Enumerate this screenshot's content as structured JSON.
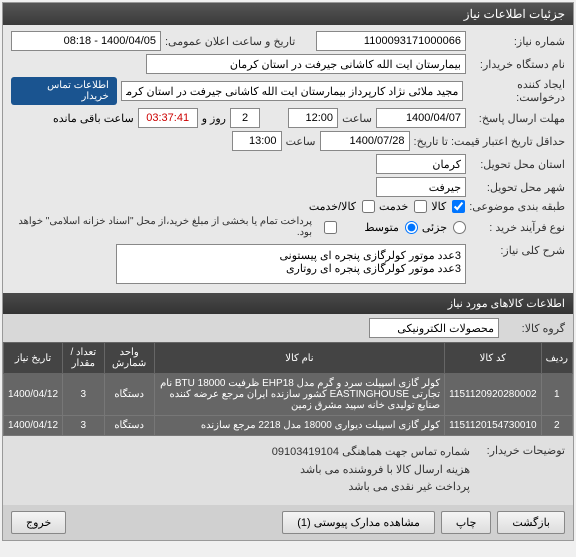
{
  "header": {
    "title": "جزئیات اطلاعات نیاز"
  },
  "form": {
    "need_no_label": "شماره نیاز:",
    "need_no": "1100093171000066",
    "announce_label": "تاریخ و ساعت اعلان عمومی:",
    "announce": "1400/04/05 - 08:18",
    "buyer_label": "نام دستگاه خریدار:",
    "buyer": "بیمارستان ایت الله کاشانی جیرفت در استان کرمان",
    "creator_label": "ایجاد کننده درخواست:",
    "creator": "مجید ملائی نژاد کارپرداز بیمارستان ایت الله کاشانی جیرفت در استان کرمان",
    "contact_badge": "اطلاعات تماس خریدار",
    "deadline_send_label": "مهلت ارسال پاسخ:",
    "deadline_send_date": "1400/04/07",
    "saat": "ساعت",
    "deadline_send_time": "12:00",
    "days_val": "2",
    "rooz_va": "روز و",
    "timer": "03:37:41",
    "remaining": "ساعت باقی مانده",
    "min_validity_label": "حداقل تاریخ اعتبار قیمت: تا تاریخ:",
    "min_validity_date": "1400/07/28",
    "min_validity_time": "13:00",
    "delivery_state_label": "استان محل تحویل:",
    "delivery_state": "کرمان",
    "delivery_city_label": "شهر محل تحویل:",
    "delivery_city": "جیرفت",
    "category_label": "طبقه بندی موضوعی:",
    "cat_goods": "کالا",
    "cat_service": "خدمت",
    "cat_goods_service": "کالا/خدمت",
    "process_label": "نوع فرآیند خرید :",
    "proc_small": "جزئی",
    "proc_medium": "متوسط",
    "payment_note": "پرداخت تمام یا بخشی از مبلغ خرید،از محل \"اسناد خزانه اسلامی\" خواهد بود.",
    "desc_label": "شرح کلی نیاز:",
    "desc": "3عدد موتور کولرگازی پنجره ای پیستونی\n3عدد موتور کولرگازی پنجره ای روتاری"
  },
  "items_section": {
    "title": "اطلاعات کالاهای مورد نیاز",
    "group_label": "گروه کالا:",
    "group": "محصولات الکترونیکی"
  },
  "table": {
    "headers": [
      "ردیف",
      "کد کالا",
      "نام کالا",
      "واحد شمارش",
      "تعداد / مقدار",
      "تاریخ نیاز"
    ],
    "rows": [
      [
        "1",
        "1151120920280002",
        "کولر گازی اسپیلت سرد و گرم مدل EHP18 ظرفیت 18000 BTU نام تجارتی EASTINGHOUSE کشور سازنده ایران مرجع عرضه کننده صنایع تولیدی خانه سپید مشرق زمین",
        "دستگاه",
        "3",
        "1400/04/12"
      ],
      [
        "2",
        "1151120154730010",
        "کولر گازی اسپیلت دیواری 18000 مدل 2218 مرجع سازنده",
        "دستگاه",
        "3",
        "1400/04/12"
      ]
    ]
  },
  "notes": {
    "label": "توضیحات خریدار:",
    "line1": "شماره تماس جهت هماهنگی 09103419104",
    "line2": "هزینه ارسال کالا با فروشنده می باشد",
    "line3": "پرداخت غیر نقدی می باشد"
  },
  "footer": {
    "back": "بازگشت",
    "print": "چاپ",
    "attachments": "مشاهده مدارک پیوستی (1)",
    "exit": "خروج"
  }
}
